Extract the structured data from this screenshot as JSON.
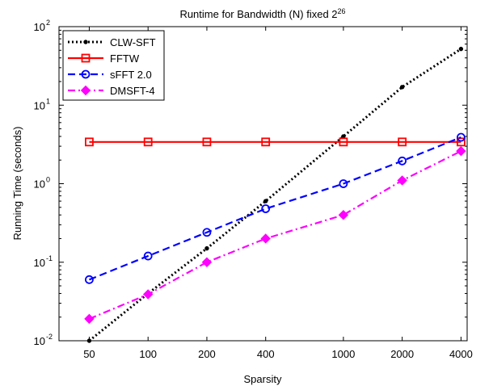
{
  "chart_data": {
    "type": "line",
    "title": "Runtime for Bandwidth (N) fixed 2",
    "title_superscript": "26",
    "xlabel": "Sparsity",
    "ylabel": "Running Time (seconds)",
    "x_scale": "log",
    "y_scale": "log",
    "x": [
      50,
      100,
      200,
      400,
      1000,
      2000,
      4000
    ],
    "x_tick_labels": [
      "50",
      "100",
      "200",
      "400",
      "1000",
      "2000",
      "4000"
    ],
    "xlim": [
      35,
      4300
    ],
    "ylim": [
      0.01,
      100
    ],
    "y_ticks": [
      {
        "base": "10",
        "exp": "-2"
      },
      {
        "base": "10",
        "exp": "-1"
      },
      {
        "base": "10",
        "exp": "0"
      },
      {
        "base": "10",
        "exp": "1"
      },
      {
        "base": "10",
        "exp": "2"
      }
    ],
    "y_tick_values": [
      0.01,
      0.1,
      1,
      10,
      100
    ],
    "legend_position": "top-left",
    "series": [
      {
        "name": "CLW-SFT",
        "color": "#000000",
        "dash": "dotted",
        "marker": "dot",
        "values": [
          0.01,
          0.04,
          0.15,
          0.6,
          4,
          17,
          52
        ]
      },
      {
        "name": "FFTW",
        "color": "#ff0000",
        "dash": "solid",
        "marker": "square",
        "values": [
          3.4,
          3.4,
          3.4,
          3.4,
          3.4,
          3.4,
          3.4
        ]
      },
      {
        "name": "sFFT 2.0",
        "color": "#0000ff",
        "dash": "dashed",
        "marker": "circle",
        "values": [
          0.06,
          0.12,
          0.24,
          0.48,
          1.0,
          1.95,
          3.9
        ]
      },
      {
        "name": "DMSFT-4",
        "color": "#ff00ff",
        "dash": "dashdot",
        "marker": "diamond",
        "values": [
          0.019,
          0.039,
          0.1,
          0.2,
          0.4,
          1.1,
          2.6
        ]
      }
    ]
  }
}
